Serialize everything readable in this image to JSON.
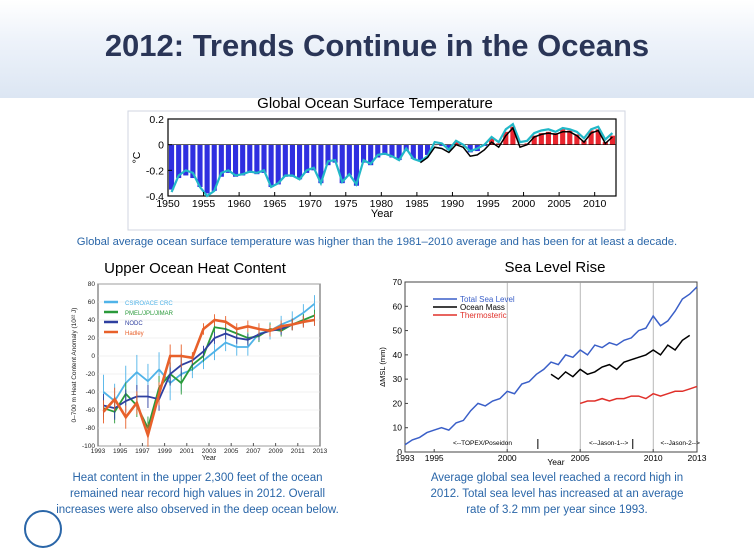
{
  "slide": {
    "title": "2012: Trends Continue in the Oceans",
    "caption_top": "Global average ocean surface temperature was higher than the 1981–2010 average and has been for at least a decade.",
    "caption_left": [
      "Heat content in the upper 2,300 feet of the ocean",
      "remained near record high values in 2012. Overall",
      "increases were also observed in the deep ocean below."
    ],
    "caption_right": [
      "Average global sea level reached a record high in",
      "2012. Total sea level has increased at an average",
      "rate of 3.2 mm per year since 1993."
    ]
  },
  "chart_data": [
    {
      "type": "bar",
      "title": "Global Ocean Surface Temperature",
      "xlabel": "Year",
      "ylabel": "°C",
      "xlim": [
        1950,
        2013
      ],
      "ylim": [
        -0.4,
        0.2
      ],
      "xticks": [
        "1950",
        "1955",
        "1960",
        "1965",
        "1970",
        "1975",
        "1980",
        "1985",
        "1990",
        "1995",
        "2000",
        "2005",
        "2010"
      ],
      "yticks": [
        "-0.4",
        "-0.2",
        "0",
        "0.2"
      ],
      "colors": {
        "negative": "#2f2fe0",
        "positive": "#e8252e",
        "series_cyan": "#22b8c8",
        "series_black": "#000000"
      },
      "years": [
        1950,
        1951,
        1952,
        1953,
        1954,
        1955,
        1956,
        1957,
        1958,
        1959,
        1960,
        1961,
        1962,
        1963,
        1964,
        1965,
        1966,
        1967,
        1968,
        1969,
        1970,
        1971,
        1972,
        1973,
        1974,
        1975,
        1976,
        1977,
        1978,
        1979,
        1980,
        1981,
        1982,
        1983,
        1984,
        1985,
        1986,
        1987,
        1988,
        1989,
        1990,
        1991,
        1992,
        1993,
        1994,
        1995,
        1996,
        1997,
        1998,
        1999,
        2000,
        2001,
        2002,
        2003,
        2004,
        2005,
        2006,
        2007,
        2008,
        2009,
        2010,
        2011,
        2012
      ],
      "values": [
        -0.35,
        -0.26,
        -0.24,
        -0.26,
        -0.33,
        -0.38,
        -0.36,
        -0.25,
        -0.22,
        -0.25,
        -0.24,
        -0.22,
        -0.23,
        -0.22,
        -0.33,
        -0.31,
        -0.25,
        -0.25,
        -0.27,
        -0.22,
        -0.2,
        -0.3,
        -0.16,
        -0.14,
        -0.3,
        -0.24,
        -0.32,
        -0.14,
        -0.16,
        -0.1,
        -0.08,
        -0.1,
        -0.12,
        -0.05,
        -0.11,
        -0.13,
        -0.08,
        0.0,
        -0.01,
        -0.04,
        0.02,
        0.0,
        -0.06,
        -0.05,
        -0.01,
        0.05,
        0.01,
        0.1,
        0.14,
        0.0,
        0.01,
        0.07,
        0.09,
        0.1,
        0.09,
        0.12,
        0.11,
        0.08,
        0.03,
        0.11,
        0.12,
        0.02,
        0.07
      ],
      "series": [
        {
          "values": [
            -0.37,
            -0.24,
            -0.2,
            -0.22,
            -0.33,
            -0.4,
            -0.36,
            -0.22,
            -0.2,
            -0.24,
            -0.23,
            -0.21,
            -0.22,
            -0.2,
            -0.33,
            -0.3,
            -0.24,
            -0.24,
            -0.27,
            -0.2,
            -0.18,
            -0.3,
            -0.13,
            -0.12,
            -0.29,
            -0.23,
            -0.31,
            -0.12,
            -0.15,
            -0.08,
            -0.07,
            -0.09,
            -0.12,
            -0.03,
            -0.11,
            -0.13,
            -0.09,
            0.02,
            0.01,
            -0.04,
            0.03,
            0.0,
            -0.05,
            -0.03,
            0.0,
            0.06,
            0.02,
            0.12,
            0.16,
            0.02,
            0.03,
            0.09,
            0.11,
            0.12,
            0.1,
            0.13,
            0.12,
            0.1,
            0.05,
            0.12,
            0.14,
            0.04,
            0.09
          ]
        },
        {
          "start": 1985,
          "values": [
            -0.14,
            -0.1,
            -0.02,
            -0.03,
            -0.06,
            0.0,
            -0.02,
            -0.09,
            -0.08,
            -0.04,
            0.02,
            -0.02,
            0.07,
            0.13,
            -0.02,
            0.0,
            0.06,
            0.08,
            0.09,
            0.08,
            0.1,
            0.1,
            0.07,
            0.02,
            0.09,
            0.11,
            0.01,
            0.06
          ]
        }
      ]
    },
    {
      "type": "line",
      "title": "Upper Ocean Heat Content",
      "xlabel": "Year",
      "ylabel": "0–700 m Heat Content Anomaly (10²² J)",
      "xlim": [
        1993,
        2013
      ],
      "ylim": [
        -100,
        80
      ],
      "xticks": [
        "1993",
        "1995",
        "1997",
        "1999",
        "2001",
        "2003",
        "2005",
        "2007",
        "2009",
        "2011",
        "2013"
      ],
      "yticks": [
        "-100",
        "-80",
        "-60",
        "-40",
        "-20",
        "0",
        "20",
        "40",
        "60",
        "80"
      ],
      "x": [
        1993,
        1994,
        1995,
        1996,
        1997,
        1998,
        1999,
        2000,
        2001,
        2002,
        2003,
        2004,
        2005,
        2006,
        2007,
        2008,
        2009,
        2010,
        2011,
        2012
      ],
      "series": [
        {
          "name": "CSIRO/ACE CRC",
          "color": "#4fb3e8",
          "values": [
            -40,
            -50,
            -30,
            -18,
            -28,
            -15,
            -30,
            -20,
            -15,
            -5,
            5,
            15,
            10,
            10,
            25,
            28,
            35,
            40,
            48,
            58
          ]
        },
        {
          "name": "PMEL/JPL/JIMAR",
          "color": "#2a9a3a",
          "values": [
            -58,
            -62,
            -42,
            -55,
            -80,
            -35,
            -20,
            -30,
            -10,
            0,
            32,
            30,
            25,
            20,
            22,
            30,
            28,
            35,
            40,
            45
          ]
        },
        {
          "name": "NODC",
          "color": "#2e3fa0",
          "values": [
            -55,
            -58,
            -50,
            -45,
            -45,
            -48,
            -20,
            -10,
            -5,
            5,
            20,
            25,
            20,
            18,
            24,
            28,
            30,
            35,
            38,
            40
          ]
        },
        {
          "name": "Hadley",
          "color": "#e8602a",
          "values": [
            -62,
            -48,
            -68,
            -52,
            -88,
            -42,
            0,
            0,
            -2,
            30,
            40,
            38,
            30,
            33,
            30,
            28,
            33,
            35,
            38,
            40
          ]
        }
      ]
    },
    {
      "type": "line",
      "title": "Sea Level Rise",
      "xlabel": "Year",
      "ylabel": "ΔMSL (mm)",
      "xlim": [
        1993,
        2013
      ],
      "ylim": [
        0,
        70
      ],
      "xticks": [
        "1993",
        "1995",
        "2000",
        "2005",
        "2010",
        "2013"
      ],
      "yticks": [
        "0",
        "10",
        "20",
        "30",
        "40",
        "50",
        "60",
        "70"
      ],
      "annotations": [
        "<--TOPEX/Poseidon",
        "<--Jason-1-->",
        "<--Jason-2-->"
      ],
      "series": [
        {
          "name": "Total Sea Level",
          "color": "#3a5fc8",
          "x": [
            1993,
            1993.5,
            1994,
            1994.5,
            1995,
            1995.5,
            1996,
            1996.5,
            1997,
            1997.5,
            1998,
            1998.5,
            1999,
            1999.5,
            2000,
            2000.5,
            2001,
            2001.5,
            2002,
            2002.5,
            2003,
            2003.5,
            2004,
            2004.5,
            2005,
            2005.5,
            2006,
            2006.5,
            2007,
            2007.5,
            2008,
            2008.5,
            2009,
            2009.5,
            2010,
            2010.5,
            2011,
            2011.5,
            2012,
            2012.5,
            2013
          ],
          "values": [
            3,
            5,
            6,
            8,
            9,
            10,
            9,
            12,
            13,
            17,
            20,
            19,
            21,
            22,
            25,
            24,
            28,
            29,
            32,
            34,
            37,
            36,
            40,
            39,
            42,
            40,
            44,
            43,
            45,
            44,
            46,
            47,
            50,
            51,
            56,
            52,
            54,
            58,
            63,
            65,
            68
          ]
        },
        {
          "name": "Ocean Mass",
          "color": "#000000",
          "x": [
            2003,
            2003.5,
            2004,
            2004.5,
            2005,
            2005.5,
            2006,
            2006.5,
            2007,
            2007.5,
            2008,
            2008.5,
            2009,
            2009.5,
            2010,
            2010.5,
            2011,
            2011.5,
            2012,
            2012.5
          ],
          "values": [
            32,
            30,
            33,
            31,
            34,
            32,
            33,
            35,
            36,
            34,
            37,
            38,
            39,
            40,
            42,
            40,
            44,
            42,
            46,
            48
          ]
        },
        {
          "name": "Thermosteric",
          "color": "#e0302a",
          "x": [
            2005,
            2005.5,
            2006,
            2006.5,
            2007,
            2007.5,
            2008,
            2008.5,
            2009,
            2009.5,
            2010,
            2010.5,
            2011,
            2011.5,
            2012,
            2012.5,
            2013
          ],
          "values": [
            20,
            21,
            21,
            22,
            21,
            22,
            22,
            23,
            23,
            22,
            24,
            23,
            24,
            25,
            25,
            26,
            27
          ]
        }
      ]
    }
  ]
}
